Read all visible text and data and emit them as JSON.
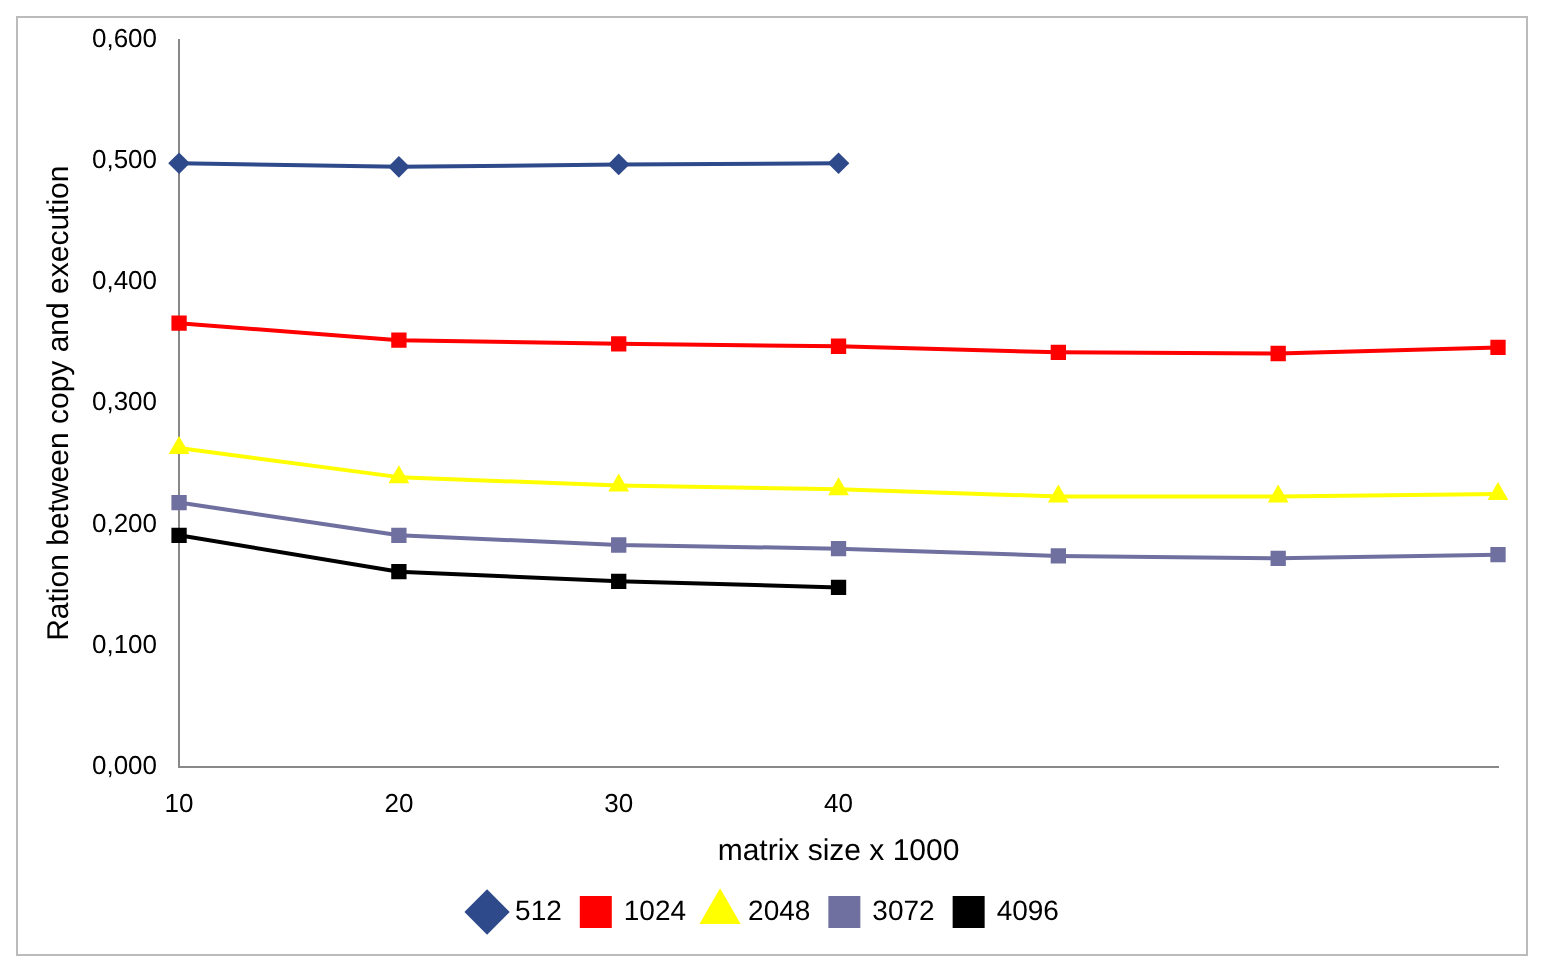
{
  "chart_data": {
    "type": "line",
    "xlabel": "matrix size x 1000",
    "ylabel": "Ration between copy and execution",
    "categories": [
      "10",
      "20",
      "30",
      "40",
      null,
      null,
      null
    ],
    "series": [
      {
        "name": "512",
        "color": "#2e4a8a",
        "marker": "diamond",
        "values": [
          0.498,
          0.495,
          0.497,
          0.498,
          null,
          null,
          null
        ]
      },
      {
        "name": "1024",
        "color": "#ff0000",
        "marker": "square",
        "values": [
          0.366,
          0.352,
          0.349,
          0.347,
          0.342,
          0.341,
          0.346
        ]
      },
      {
        "name": "2048",
        "color": "#ffff00",
        "marker": "triangle",
        "values": [
          0.263,
          0.239,
          0.232,
          0.229,
          0.223,
          0.223,
          0.225
        ]
      },
      {
        "name": "3072",
        "color": "#7070a0",
        "marker": "square",
        "values": [
          0.218,
          0.191,
          0.183,
          0.18,
          0.174,
          0.172,
          0.175
        ]
      },
      {
        "name": "4096",
        "color": "#000000",
        "marker": "square",
        "values": [
          0.191,
          0.161,
          0.153,
          0.148,
          null,
          null,
          null
        ]
      }
    ],
    "ylim": [
      0,
      0.6
    ],
    "yticks": [
      {
        "value": 0,
        "label": "0,000"
      },
      {
        "value": 0.1,
        "label": "0,100"
      },
      {
        "value": 0.2,
        "label": "0,200"
      },
      {
        "value": 0.3,
        "label": "0,300"
      },
      {
        "value": 0.4,
        "label": "0,400"
      },
      {
        "value": 0.5,
        "label": "0,500"
      },
      {
        "value": 0.6,
        "label": "0,600"
      }
    ],
    "grid": false,
    "legend": "bottom",
    "line_style": "solid"
  }
}
